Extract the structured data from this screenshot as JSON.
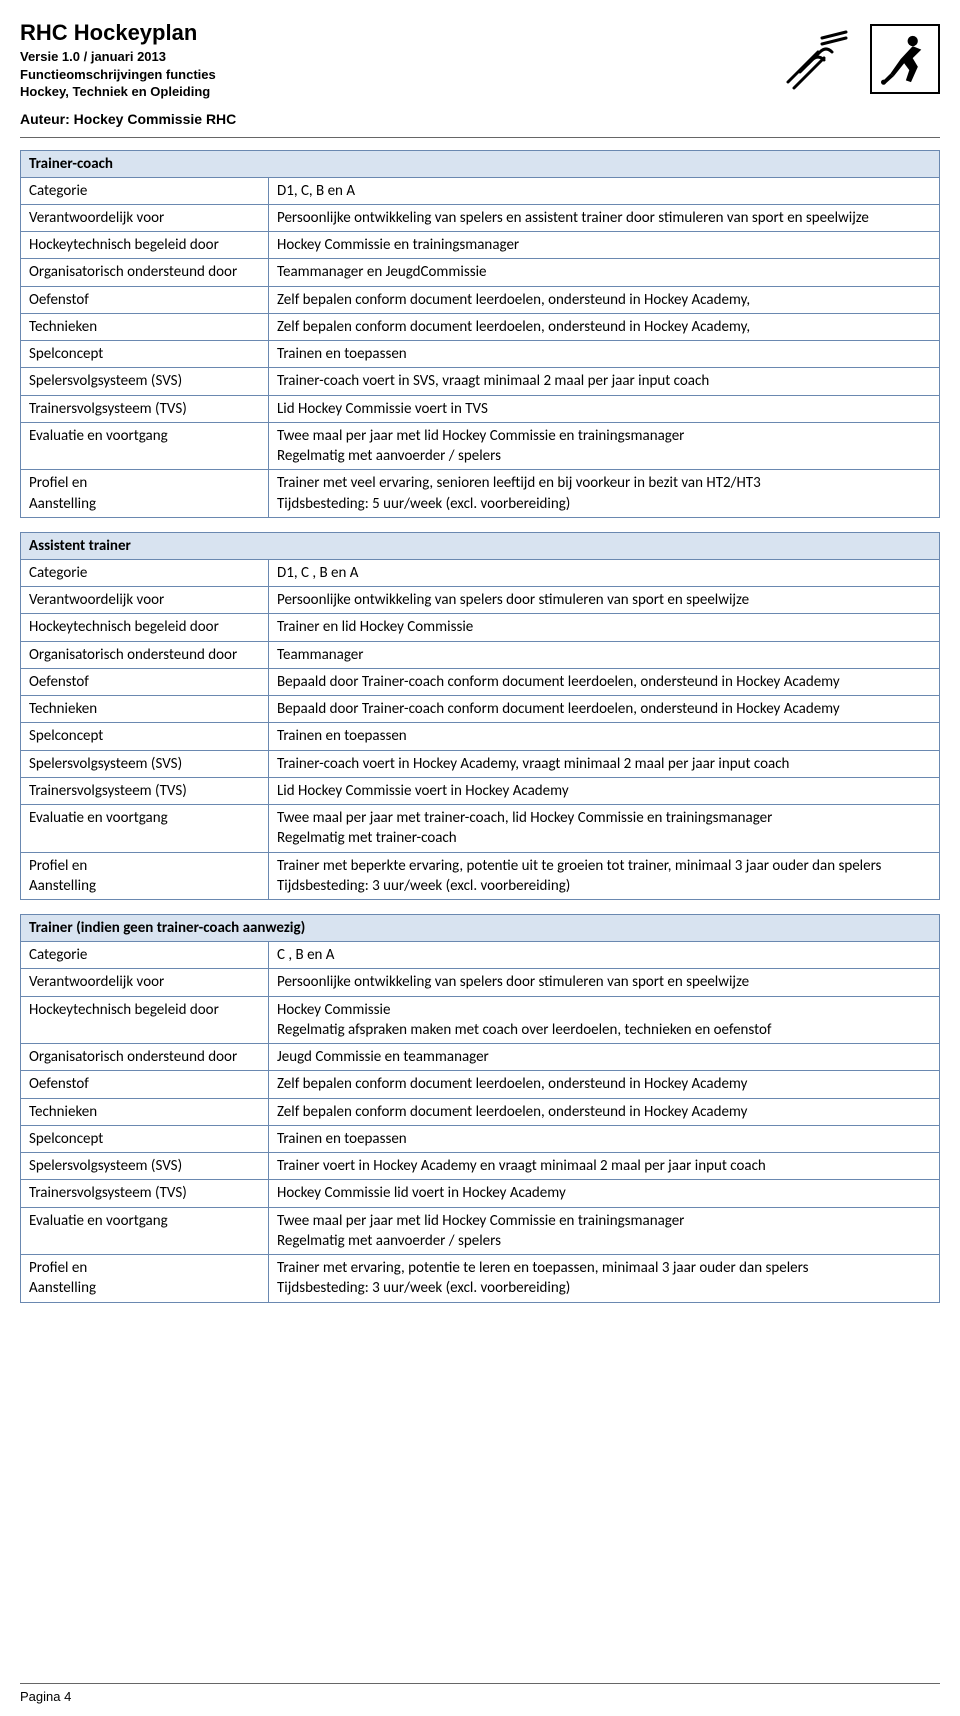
{
  "header": {
    "title": "RHC Hockeyplan",
    "version": "Versie 1.0 / januari 2013",
    "subtitle1": "Functieomschrijvingen functies",
    "subtitle2": "Hockey, Techniek en Opleiding",
    "author": "Auteur: Hockey Commissie RHC"
  },
  "tables": [
    {
      "title": "Trainer-coach",
      "rows": [
        {
          "label": "Categorie",
          "value": [
            "D1, C, B en A"
          ]
        },
        {
          "label": "Verantwoordelijk voor",
          "value": [
            "Persoonlijke ontwikkeling van spelers en assistent trainer door stimuleren van sport en speelwijze"
          ]
        },
        {
          "label": "Hockeytechnisch begeleid door",
          "value": [
            "Hockey Commissie en trainingsmanager"
          ]
        },
        {
          "label": "Organisatorisch ondersteund door",
          "value": [
            "Teammanager en JeugdCommissie"
          ]
        },
        {
          "label": "Oefenstof",
          "value": [
            "Zelf bepalen conform document leerdoelen, ondersteund in Hockey Academy,"
          ]
        },
        {
          "label": "Technieken",
          "value": [
            "Zelf bepalen conform document leerdoelen, ondersteund in Hockey Academy,"
          ]
        },
        {
          "label": "Spelconcept",
          "value": [
            "Trainen en toepassen"
          ]
        },
        {
          "label": "Spelersvolgsysteem (SVS)",
          "value": [
            "Trainer-coach voert in SVS, vraagt minimaal 2 maal per jaar input coach"
          ]
        },
        {
          "label": "Trainersvolgsysteem (TVS)",
          "value": [
            "Lid Hockey Commissie voert in TVS"
          ]
        },
        {
          "label": "Evaluatie en voortgang",
          "value": [
            "Twee maal per jaar met lid Hockey Commissie en trainingsmanager",
            "Regelmatig met aanvoerder / spelers"
          ]
        },
        {
          "label": "Profiel en\nAanstelling",
          "value": [
            "Trainer met veel ervaring, senioren leeftijd en bij voorkeur in bezit van HT2/HT3",
            "Tijdsbesteding: 5 uur/week (excl. voorbereiding)"
          ]
        }
      ]
    },
    {
      "title": "Assistent trainer",
      "rows": [
        {
          "label": "Categorie",
          "value": [
            "D1, C , B en A"
          ]
        },
        {
          "label": "Verantwoordelijk voor",
          "value": [
            "Persoonlijke ontwikkeling van spelers door stimuleren van sport en speelwijze"
          ]
        },
        {
          "label": "Hockeytechnisch begeleid door",
          "value": [
            "Trainer en lid Hockey Commissie"
          ]
        },
        {
          "label": "Organisatorisch ondersteund door",
          "value": [
            "Teammanager"
          ]
        },
        {
          "label": "Oefenstof",
          "value": [
            "Bepaald door Trainer-coach conform document leerdoelen, ondersteund in Hockey Academy"
          ]
        },
        {
          "label": "Technieken",
          "value": [
            "Bepaald door Trainer-coach conform document leerdoelen, ondersteund in Hockey Academy"
          ]
        },
        {
          "label": "Spelconcept",
          "value": [
            "Trainen en toepassen"
          ]
        },
        {
          "label": "Spelersvolgsysteem (SVS)",
          "value": [
            "Trainer-coach voert in Hockey Academy, vraagt minimaal 2 maal per jaar input coach"
          ]
        },
        {
          "label": "Trainersvolgsysteem (TVS)",
          "value": [
            "Lid Hockey Commissie voert in Hockey Academy"
          ]
        },
        {
          "label": "Evaluatie en voortgang",
          "value": [
            "Twee maal per jaar met trainer-coach, lid Hockey Commissie en trainingsmanager",
            "Regelmatig met trainer-coach"
          ]
        },
        {
          "label": "Profiel en\nAanstelling",
          "value": [
            "Trainer met beperkte ervaring, potentie uit te groeien tot trainer, minimaal 3 jaar ouder dan spelers",
            "Tijdsbesteding: 3 uur/week (excl. voorbereiding)"
          ]
        }
      ]
    },
    {
      "title": "Trainer (indien geen trainer-coach aanwezig)",
      "rows": [
        {
          "label": "Categorie",
          "value": [
            "C , B en A"
          ]
        },
        {
          "label": "Verantwoordelijk voor",
          "value": [
            "Persoonlijke ontwikkeling van spelers door stimuleren van sport en speelwijze"
          ]
        },
        {
          "label": "Hockeytechnisch begeleid door",
          "value": [
            "Hockey Commissie",
            "Regelmatig afspraken maken met coach over leerdoelen, technieken en oefenstof"
          ]
        },
        {
          "label": "Organisatorisch ondersteund door",
          "value": [
            "Jeugd Commissie en teammanager"
          ]
        },
        {
          "label": "Oefenstof",
          "value": [
            "Zelf bepalen conform document leerdoelen, ondersteund in Hockey Academy"
          ]
        },
        {
          "label": "Technieken",
          "value": [
            "Zelf bepalen conform document leerdoelen, ondersteund in Hockey Academy"
          ]
        },
        {
          "label": "Spelconcept",
          "value": [
            "Trainen en toepassen"
          ]
        },
        {
          "label": "Spelersvolgsysteem (SVS)",
          "value": [
            "Trainer voert in Hockey Academy en vraagt minimaal 2 maal per jaar input coach"
          ]
        },
        {
          "label": "Trainersvolgsysteem (TVS)",
          "value": [
            "Hockey Commissie lid voert in Hockey Academy"
          ]
        },
        {
          "label": "Evaluatie en voortgang",
          "value": [
            "Twee maal per jaar met lid Hockey Commissie en trainingsmanager",
            "Regelmatig met aanvoerder / spelers"
          ]
        },
        {
          "label": "Profiel en\nAanstelling",
          "value": [
            "Trainer met ervaring, potentie te leren en toepassen, minimaal 3 jaar ouder dan spelers",
            "Tijdsbesteding: 3 uur/week (excl. voorbereiding)"
          ]
        }
      ]
    }
  ],
  "footer": {
    "page": "Pagina 4"
  },
  "styling": {
    "pageWidth": 960,
    "pageHeight": 1460,
    "bodyFont": "Calibri, Arial",
    "headerFont": "Arial",
    "tableHeaderBg": "#d8e3f0",
    "tableBorderColor": "#6a88b0",
    "labelColWidth": 248,
    "fontSizeBody": 15,
    "fontSizeTitle": 22,
    "fontSizeMeta": 13
  }
}
